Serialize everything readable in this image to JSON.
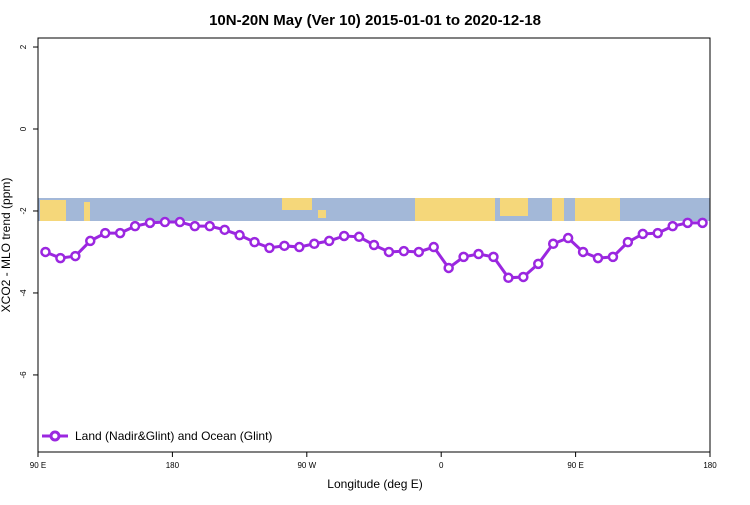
{
  "chart_data": {
    "type": "line",
    "title": "10N-20N May (Ver 10)   2015-01-01 to 2020-12-18",
    "x_label": "Longitude (deg E)",
    "y_label": "XCO2 - MLO trend (ppm)",
    "x": [
      95,
      105,
      115,
      125,
      135,
      145,
      155,
      165,
      175,
      185,
      195,
      205,
      215,
      225,
      235,
      245,
      255,
      265,
      275,
      285,
      295,
      305,
      315,
      325,
      335,
      345,
      355,
      365,
      375,
      385,
      395,
      405,
      415,
      425,
      435,
      445,
      455,
      465,
      475,
      485,
      495,
      505,
      515,
      525,
      535
    ],
    "series": [
      {
        "name": "Land (Nadir&Glint) and Ocean (Glint)",
        "color": "#9b27e0",
        "values": [
          -3.0,
          -3.15,
          -3.1,
          -2.73,
          -2.54,
          -2.54,
          -2.37,
          -2.29,
          -2.27,
          -2.27,
          -2.37,
          -2.37,
          -2.46,
          -2.59,
          -2.76,
          -2.9,
          -2.85,
          -2.88,
          -2.8,
          -2.73,
          -2.61,
          -2.63,
          -2.83,
          -3.0,
          -2.98,
          -3.0,
          -2.88,
          -3.39,
          -3.12,
          -3.05,
          -3.12,
          -3.63,
          -3.61,
          -3.29,
          -2.8,
          -2.66,
          -3.0,
          -3.15,
          -3.12,
          -2.76,
          -2.56,
          -2.54,
          -2.37,
          -2.29,
          -2.29
        ]
      }
    ],
    "xlim": [
      90,
      540
    ],
    "xticks": [
      {
        "value": 90,
        "label": "90 E"
      },
      {
        "value": 180,
        "label": "180"
      },
      {
        "value": 270,
        "label": "90 W"
      },
      {
        "value": 360,
        "label": "0"
      },
      {
        "value": 450,
        "label": "90 E"
      },
      {
        "value": 540,
        "label": "180"
      }
    ],
    "ylim": [
      -7.88,
      2.22
    ],
    "yticks": [
      -6,
      -4,
      -2,
      0,
      2
    ],
    "legend": "bottom-left"
  }
}
